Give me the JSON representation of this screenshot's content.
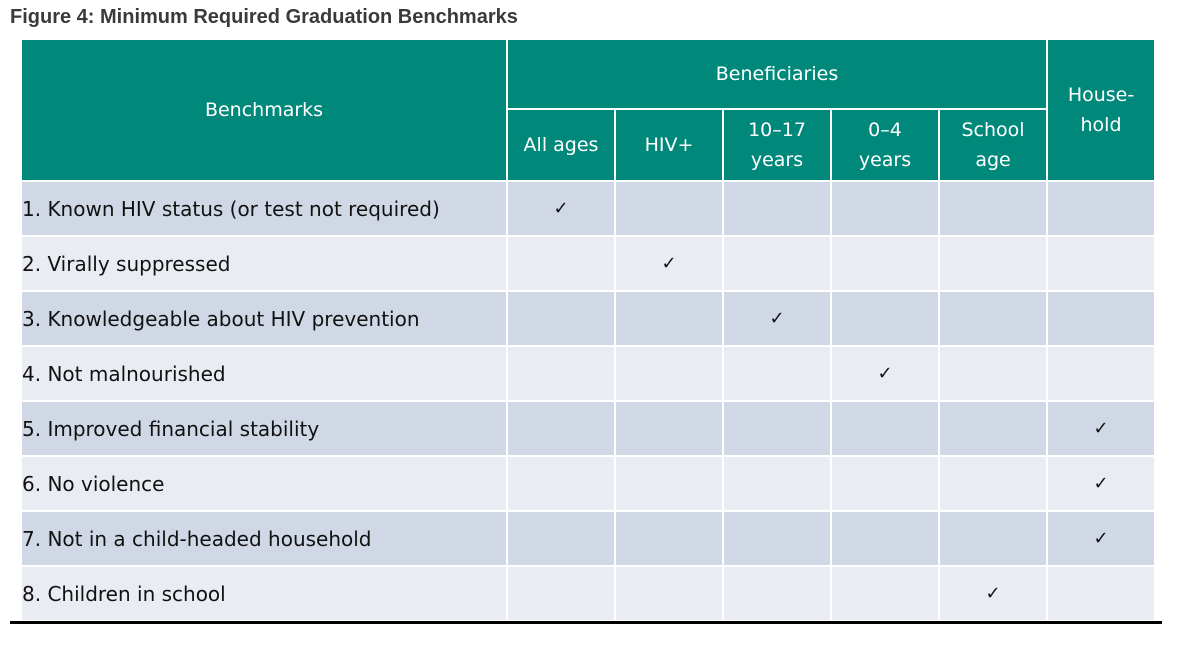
{
  "figure": {
    "title": "Figure 4: Minimum Required Graduation Benchmarks"
  },
  "table": {
    "header": {
      "benchmarks": "Benchmarks",
      "beneficiaries": "Beneficiaries",
      "household_line1": "House-",
      "household_line2": "hold",
      "columns": [
        {
          "line1": "All ages",
          "line2": ""
        },
        {
          "line1": "HIV+",
          "line2": ""
        },
        {
          "line1": "10–17",
          "line2": "years"
        },
        {
          "line1": "0–4",
          "line2": "years"
        },
        {
          "line1": "School",
          "line2": "age"
        }
      ]
    },
    "check_symbol": "✓",
    "rows": [
      {
        "label": "1. Known HIV status (or test not required)",
        "marks": [
          "✓",
          "",
          "",
          "",
          "",
          ""
        ]
      },
      {
        "label": "2. Virally suppressed",
        "marks": [
          "",
          "✓",
          "",
          "",
          "",
          ""
        ]
      },
      {
        "label": "3. Knowledgeable about HIV prevention",
        "marks": [
          "",
          "",
          "✓",
          "",
          "",
          ""
        ]
      },
      {
        "label": "4. Not malnourished",
        "marks": [
          "",
          "",
          "",
          "✓",
          "",
          ""
        ]
      },
      {
        "label": "5. Improved financial stability",
        "marks": [
          "",
          "",
          "",
          "",
          "",
          "✓"
        ]
      },
      {
        "label": "6. No violence",
        "marks": [
          "",
          "",
          "",
          "",
          "",
          "✓"
        ]
      },
      {
        "label": "7. Not in a child-headed household",
        "marks": [
          "",
          "",
          "",
          "",
          "",
          "✓"
        ]
      },
      {
        "label": "8. Children in school",
        "marks": [
          "",
          "",
          "",
          "",
          "✓",
          ""
        ]
      }
    ],
    "colors": {
      "header_bg": "#00897b",
      "row_odd_bg": "#d1d8e5",
      "row_even_bg": "#e9edf3"
    }
  }
}
